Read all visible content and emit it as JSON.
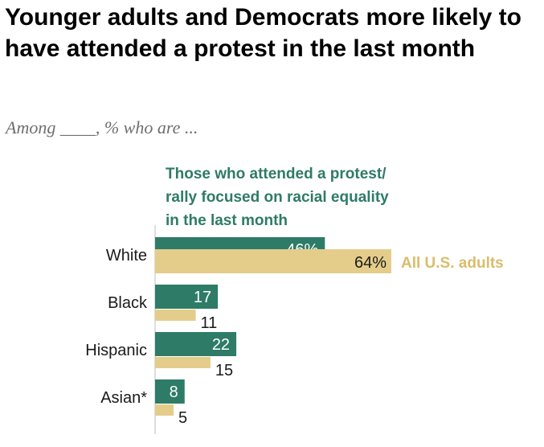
{
  "title": "Younger adults and Democrats more likely to have attended a protest in the last month",
  "subtitle": "Among ____, % who are ...",
  "colors": {
    "protest": "#2e7b67",
    "all_adults": "#e4cd8b",
    "all_adults_label": "#d9bd6c",
    "protest_label": "#2e7b67",
    "axis": "#c8c8c8"
  },
  "chart_data": {
    "type": "bar",
    "orientation": "horizontal",
    "categories": [
      "White",
      "Black",
      "Hispanic",
      "Asian*"
    ],
    "series": [
      {
        "name": "Those who attended a protest/ rally focused on racial equality in the last month",
        "name_lines": [
          "Those who attended a protest/",
          "rally focused on racial equality",
          "in the last month"
        ],
        "values": [
          46,
          17,
          22,
          8
        ],
        "labels": [
          "46%",
          "17",
          "22",
          "8"
        ]
      },
      {
        "name": "All U.S. adults",
        "name_lines": [
          "All U.S. adults"
        ],
        "values": [
          64,
          11,
          15,
          5
        ],
        "labels": [
          "64%",
          "11",
          "15",
          "5"
        ]
      }
    ],
    "xlim": [
      0,
      64
    ],
    "grid": false,
    "legend": "inline"
  }
}
